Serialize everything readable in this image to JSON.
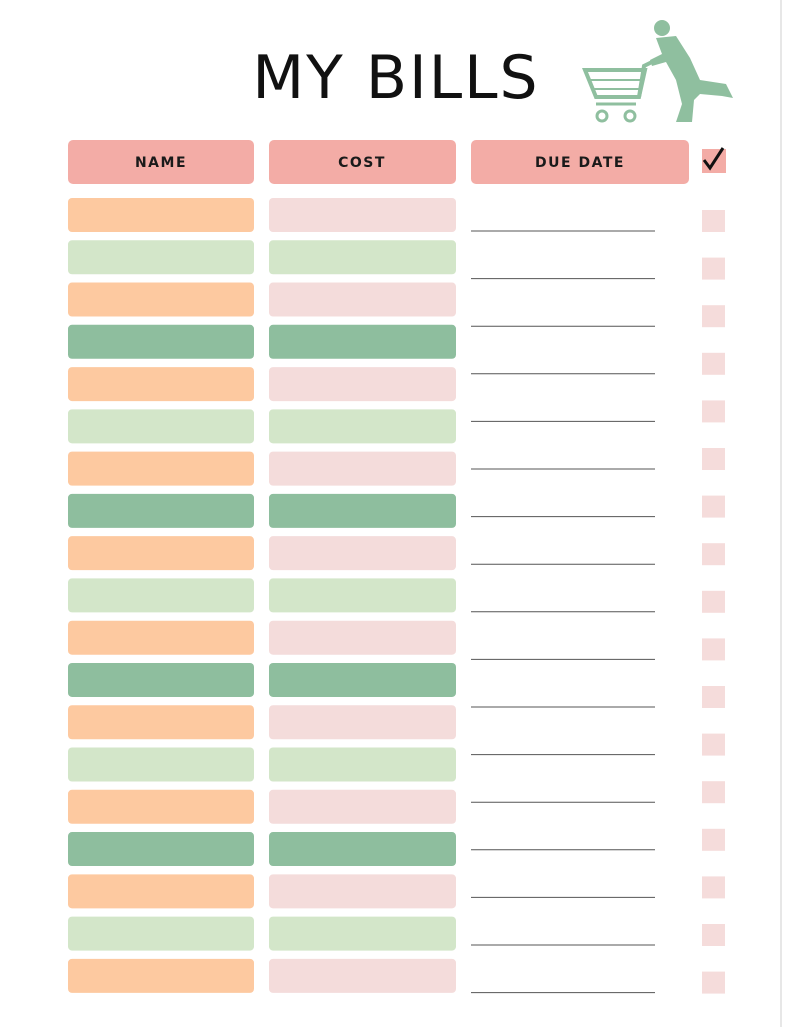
{
  "header": {
    "title": "MY BILLS"
  },
  "table": {
    "columns": [
      "NAME",
      "COST",
      "DUE DATE"
    ]
  }
}
